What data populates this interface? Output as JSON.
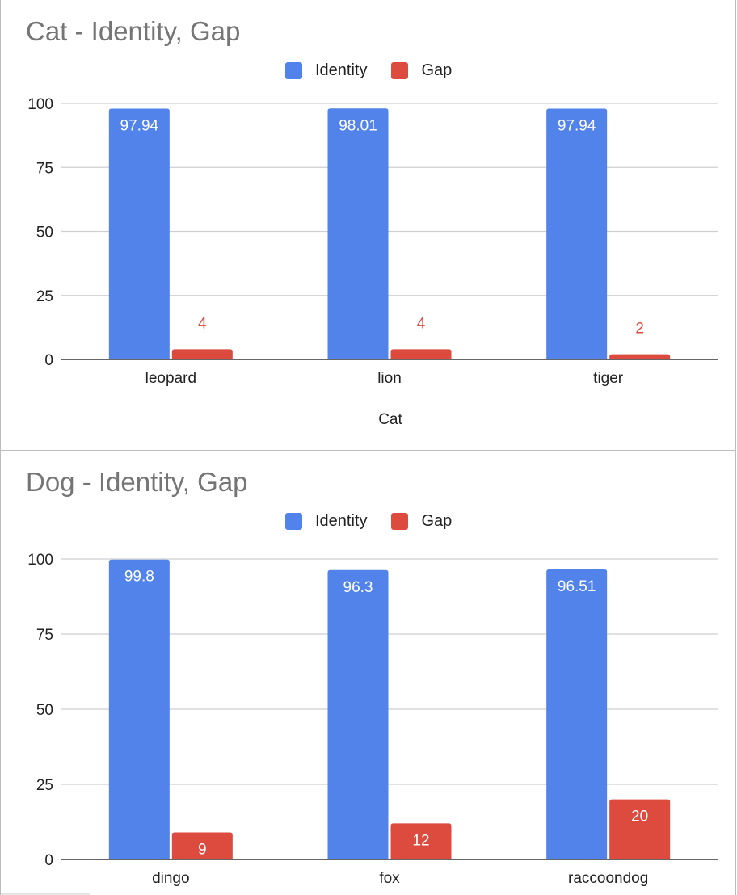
{
  "chart_data": [
    {
      "type": "bar",
      "title": "Cat - Identity, Gap",
      "xlabel": "Cat",
      "ylabel": "",
      "categories": [
        "leopard",
        "lion",
        "tiger"
      ],
      "series": [
        {
          "name": "Identity",
          "values": [
            97.94,
            98.01,
            97.94
          ],
          "color": "#5183ea",
          "label_color": "#ffffff",
          "label_position": "inside-top"
        },
        {
          "name": "Gap",
          "values": [
            4,
            4,
            2
          ],
          "color": "#dc4b3e",
          "label_color": "#dc4b3e",
          "label_position": "above"
        }
      ],
      "data_labels": [
        [
          "97.94",
          "98.01",
          "97.94"
        ],
        [
          "4",
          "4",
          "2"
        ]
      ],
      "ylim": [
        0,
        100
      ],
      "yticks": [
        "100",
        "75",
        "50",
        "25",
        "0"
      ],
      "grid": true,
      "legend": "top"
    },
    {
      "type": "bar",
      "title": "Dog - Identity, Gap",
      "xlabel": "",
      "ylabel": "",
      "categories": [
        "dingo",
        "fox",
        "raccoondog"
      ],
      "series": [
        {
          "name": "Identity",
          "values": [
            99.8,
            96.3,
            96.51
          ],
          "color": "#5183ea",
          "label_color": "#ffffff",
          "label_position": "inside-top"
        },
        {
          "name": "Gap",
          "values": [
            9,
            12,
            20
          ],
          "color": "#dc4b3e",
          "label_color": "#ffffff",
          "label_position": "inside-top"
        }
      ],
      "data_labels": [
        [
          "99.8",
          "96.3",
          "96.51"
        ],
        [
          "9",
          "12",
          "20"
        ]
      ],
      "ylim": [
        0,
        100
      ],
      "yticks": [
        "100",
        "75",
        "50",
        "25",
        "0"
      ],
      "grid": true,
      "legend": "top"
    }
  ]
}
